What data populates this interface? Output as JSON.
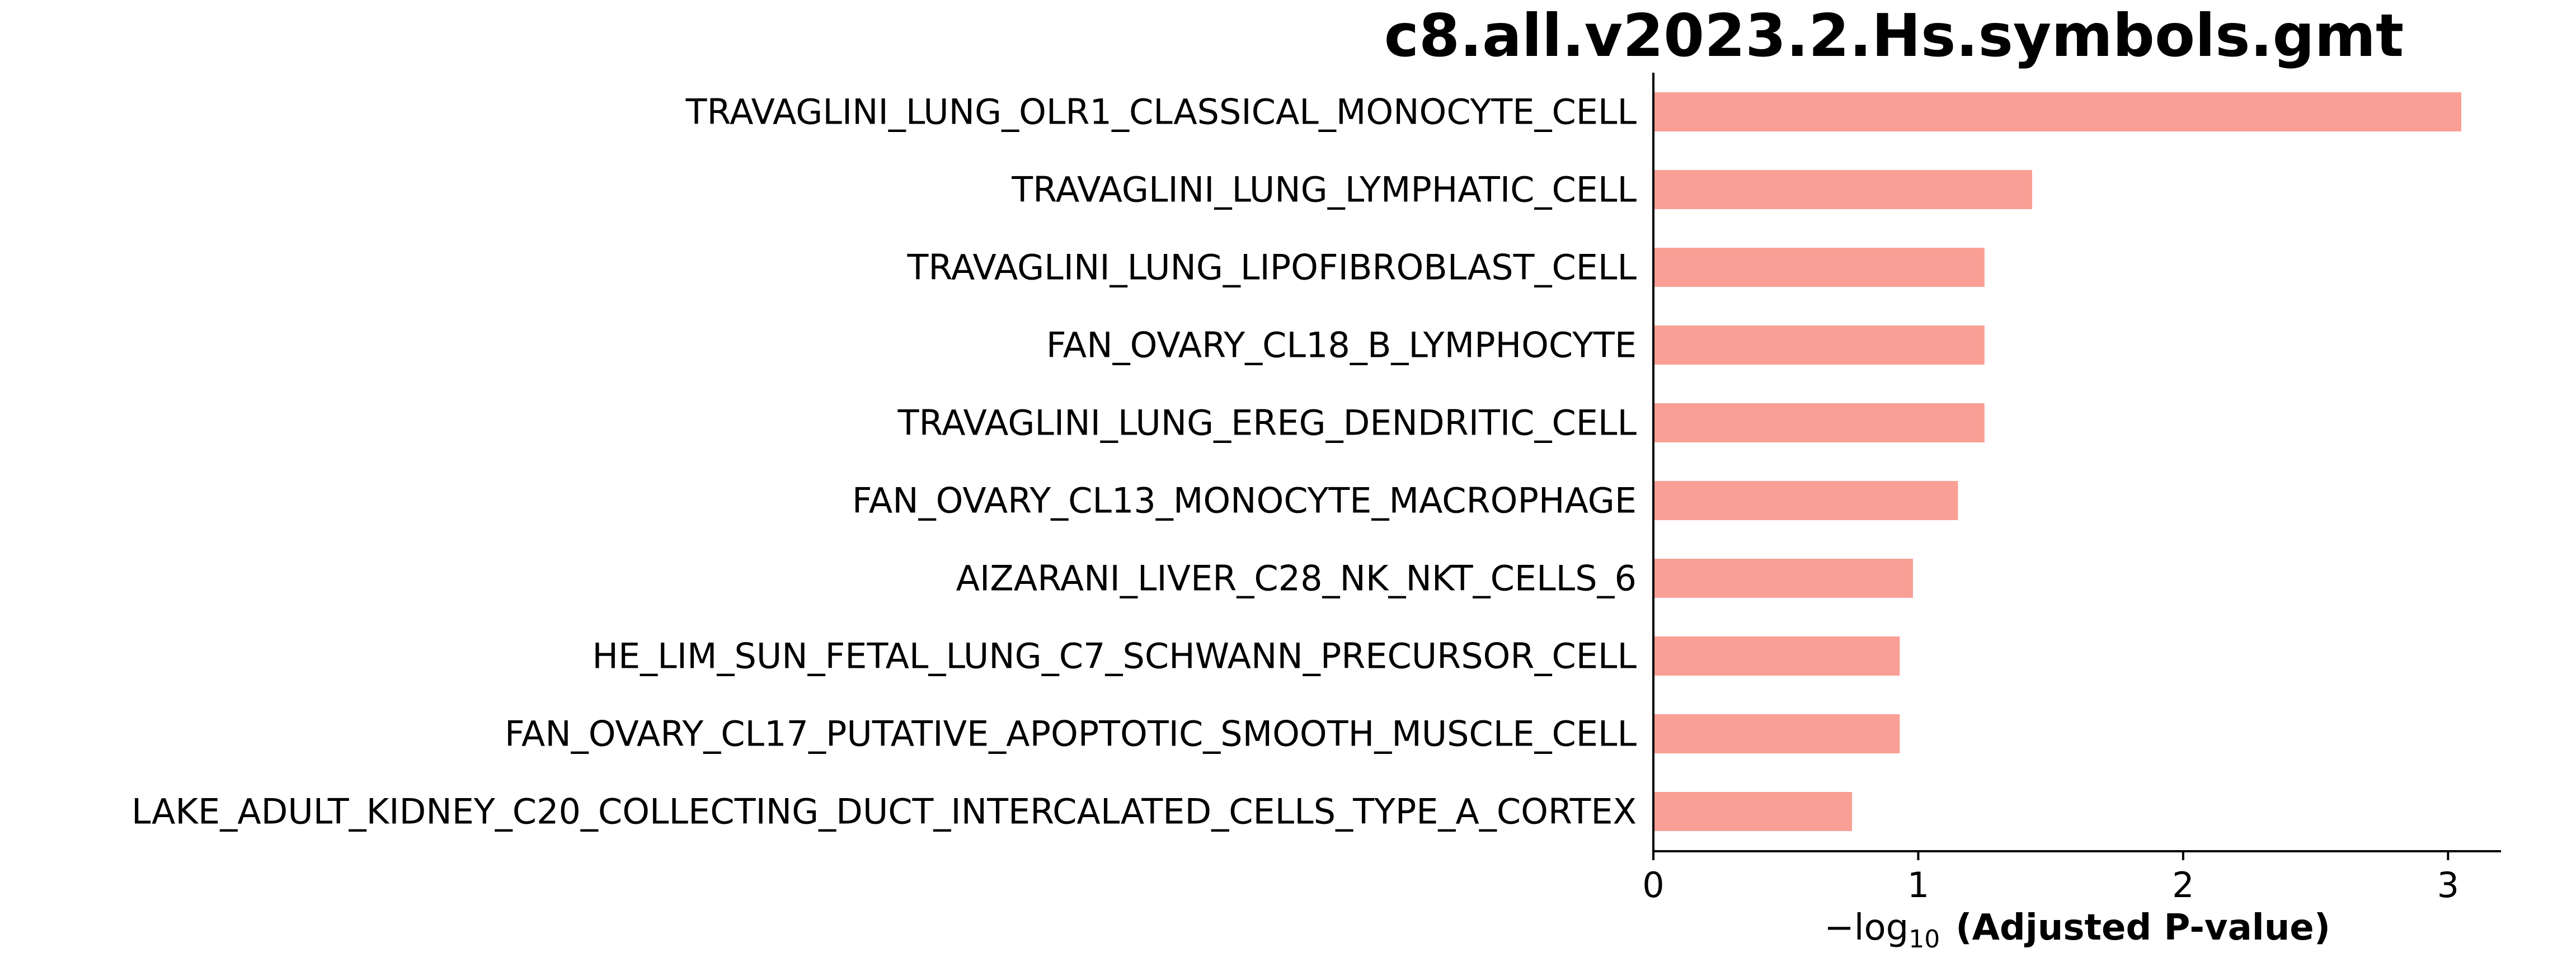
{
  "chart_data": {
    "type": "bar",
    "orientation": "horizontal",
    "title": "c8.all.v2023.2.Hs.symbols.gmt",
    "xlabel_prefix": "−log",
    "xlabel_subscript": "10",
    "xlabel_main": "(Adjusted P-value)",
    "ylabel": "",
    "xlim": [
      0,
      3.2
    ],
    "xticks": [
      0,
      1,
      2,
      3
    ],
    "grid": false,
    "bar_color": "#FA9F95",
    "categories": [
      "TRAVAGLINI_LUNG_OLR1_CLASSICAL_MONOCYTE_CELL",
      "TRAVAGLINI_LUNG_LYMPHATIC_CELL",
      "TRAVAGLINI_LUNG_LIPOFIBROBLAST_CELL",
      "FAN_OVARY_CL18_B_LYMPHOCYTE",
      "TRAVAGLINI_LUNG_EREG_DENDRITIC_CELL",
      "FAN_OVARY_CL13_MONOCYTE_MACROPHAGE",
      "AIZARANI_LIVER_C28_NK_NKT_CELLS_6",
      "HE_LIM_SUN_FETAL_LUNG_C7_SCHWANN_PRECURSOR_CELL",
      "FAN_OVARY_CL17_PUTATIVE_APOPTOTIC_SMOOTH_MUSCLE_CELL",
      "LAKE_ADULT_KIDNEY_C20_COLLECTING_DUCT_INTERCALATED_CELLS_TYPE_A_CORTEX"
    ],
    "values": [
      3.05,
      1.43,
      1.25,
      1.25,
      1.25,
      1.15,
      0.98,
      0.93,
      0.93,
      0.75
    ]
  }
}
